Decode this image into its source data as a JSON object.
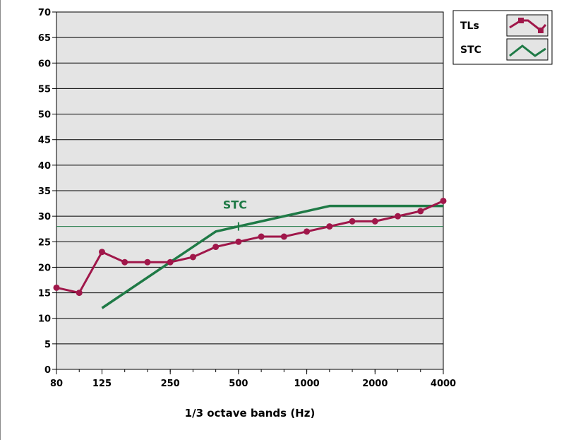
{
  "chart_data": {
    "type": "line",
    "xlabel": "1/3 octave bands (Hz)",
    "ylabel": "",
    "title": "",
    "ylim": [
      0,
      70
    ],
    "y_ticks": [
      0,
      5,
      10,
      15,
      20,
      25,
      30,
      35,
      40,
      45,
      50,
      55,
      60,
      65,
      70
    ],
    "x_bands": [
      "80",
      "100",
      "125",
      "160",
      "200",
      "250",
      "315",
      "400",
      "500",
      "630",
      "800",
      "1000",
      "1250",
      "1600",
      "2000",
      "2500",
      "3150",
      "4000"
    ],
    "x_tick_labels": [
      "80",
      "125",
      "250",
      "500",
      "1000",
      "2000",
      "4000"
    ],
    "x_tick_positions": [
      0,
      2,
      5,
      8,
      11,
      14,
      17
    ],
    "grid": true,
    "legend_position": "top-right",
    "series": [
      {
        "name": "TLs",
        "color": "#a0174a",
        "markers": true,
        "values": [
          16,
          15,
          23,
          21,
          21,
          21,
          22,
          24,
          25,
          26,
          26,
          27,
          28,
          29,
          29,
          30,
          31,
          33
        ]
      },
      {
        "name": "STC",
        "color": "#1f7a46",
        "markers": false,
        "points": [
          [
            2,
            12
          ],
          [
            5,
            21
          ],
          [
            7,
            27
          ],
          [
            8,
            28
          ],
          [
            11,
            31
          ],
          [
            12,
            32
          ],
          [
            17,
            32
          ]
        ]
      }
    ],
    "reference_line": {
      "y": 28,
      "color": "#1f7a46"
    },
    "annotation": {
      "text": "STC",
      "band_index": 8,
      "y": 28,
      "color": "#1f7a46"
    }
  }
}
